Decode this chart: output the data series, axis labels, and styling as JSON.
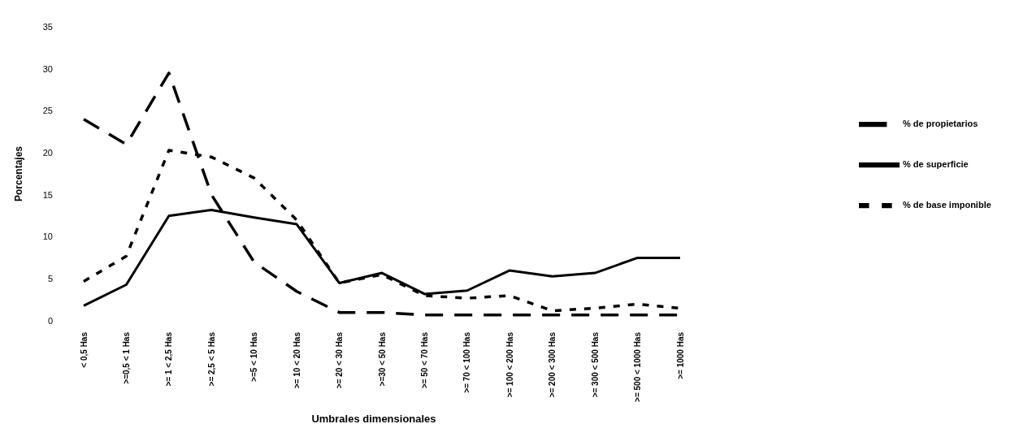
{
  "chart_data": {
    "type": "line",
    "xlabel": "Umbrales dimensionales",
    "ylabel": "Porcentajes",
    "categories": [
      "< 0,5 Has",
      ">=0,5 < 1 Has",
      ">= 1 < 2,5 Has",
      ">= 2,5 < 5 Has",
      ">=5 < 10 Has",
      ">= 10 < 20 Has",
      ">= 20 < 30 Has",
      ">=30 < 50 Has",
      ">= 50 < 70 Has",
      ">= 70 < 100 Has",
      ">= 100 < 200 Has",
      ">= 200 < 300 Has",
      ">= 300 < 500 Has",
      ">= 500 < 1000 Has",
      ">= 1000 Has"
    ],
    "series": [
      {
        "name": "% de propietarios",
        "color": "#000000",
        "line_style": "dashed",
        "values": [
          24,
          21,
          29.5,
          15,
          7,
          3.5,
          1,
          1,
          0.7,
          0.7,
          0.7,
          0.7,
          0.7,
          0.7,
          0.7
        ]
      },
      {
        "name": "% de superficie",
        "color": "#000000",
        "line_style": "solid",
        "values": [
          1.8,
          4.3,
          12.5,
          13.2,
          12.3,
          11.5,
          4.5,
          5.7,
          3.2,
          3.6,
          6,
          5.3,
          5.7,
          7.5,
          7.5
        ]
      },
      {
        "name": "% de base imponible",
        "color": "#000000",
        "line_style": "dotted",
        "values": [
          4.7,
          7.7,
          20.3,
          19.5,
          17,
          12,
          4.5,
          5.5,
          3,
          2.7,
          3,
          1.2,
          1.5,
          2,
          1.5
        ]
      }
    ],
    "ylim": [
      0,
      35
    ],
    "yticks": [
      0,
      5,
      10,
      15,
      20,
      25,
      30,
      35
    ],
    "grid": false,
    "legend": "right",
    "marker": "none"
  }
}
